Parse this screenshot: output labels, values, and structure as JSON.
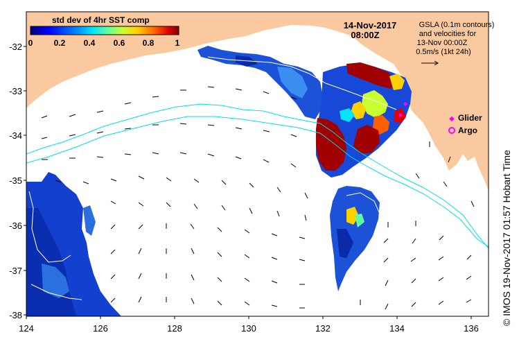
{
  "colorbar": {
    "title": "std dev of 4hr SST comp",
    "ticks": [
      "0",
      "0.2",
      "0.4",
      "0.6",
      "0.8",
      "1"
    ],
    "colors": [
      "#00007f",
      "#0000ff",
      "#0080ff",
      "#00e5ff",
      "#5fff9f",
      "#c8ff30",
      "#ffd000",
      "#ff6000",
      "#e00000",
      "#7f0000"
    ]
  },
  "header": {
    "date": "14-Nov-2017",
    "time": "08:00Z"
  },
  "legend": {
    "line1": "GSLA (0.1m contours)",
    "line2": "and velocities for",
    "line3": "13-Nov 00:00Z",
    "line4": "0.5m/s (1kt 24h)",
    "glider_label": "Glider",
    "argo_label": "Argo",
    "glider_color": "#ff00ff",
    "argo_color": "#ff00ff"
  },
  "axes": {
    "x_ticks": [
      "124",
      "126",
      "128",
      "130",
      "132",
      "134",
      "136"
    ],
    "y_ticks": [
      "-32",
      "-33",
      "-34",
      "-35",
      "-36",
      "-37",
      "-38"
    ]
  },
  "credit": "© IMOS 19-Nov-2017 01:57 Hobart Time",
  "colors": {
    "land": "#fbc9a0",
    "contour": "#00e0e0",
    "contour_white": "#ffffff"
  }
}
